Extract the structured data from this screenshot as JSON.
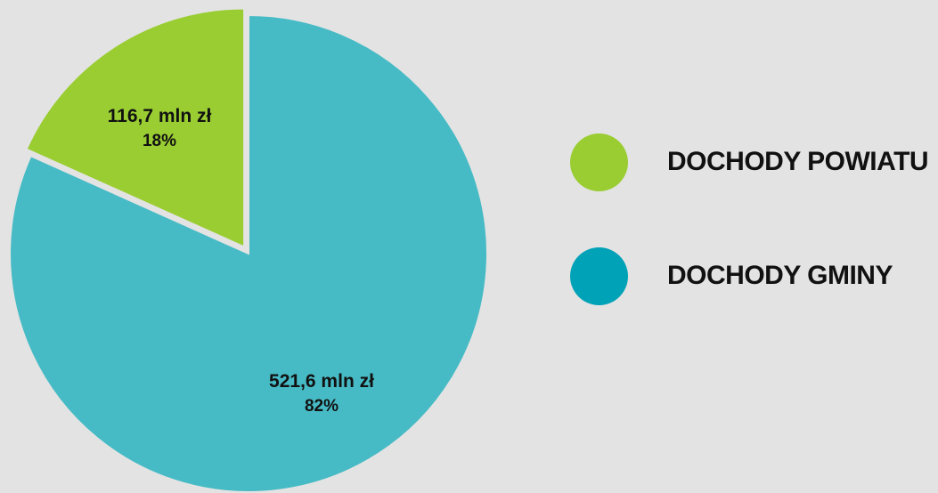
{
  "chart_data": {
    "type": "pie",
    "slices": [
      {
        "label": "DOCHODY POWIATU",
        "value": 116.7,
        "value_text": "116,7 mln zł",
        "percent": 18,
        "percent_text": "18%",
        "color": "#9acd32",
        "exploded": true
      },
      {
        "label": "DOCHODY GMINY",
        "value": 521.6,
        "value_text": "521,6 mln zł",
        "percent": 82,
        "percent_text": "82%",
        "color": "#47bbc5"
      }
    ],
    "start_angle_deg": 0,
    "direction": "counterclockwise",
    "legend": {
      "position": "right",
      "items": [
        {
          "label": "DOCHODY POWIATU",
          "color": "#9acd32"
        },
        {
          "label": "DOCHODY GMINY",
          "color": "#00a2b8"
        }
      ]
    }
  }
}
